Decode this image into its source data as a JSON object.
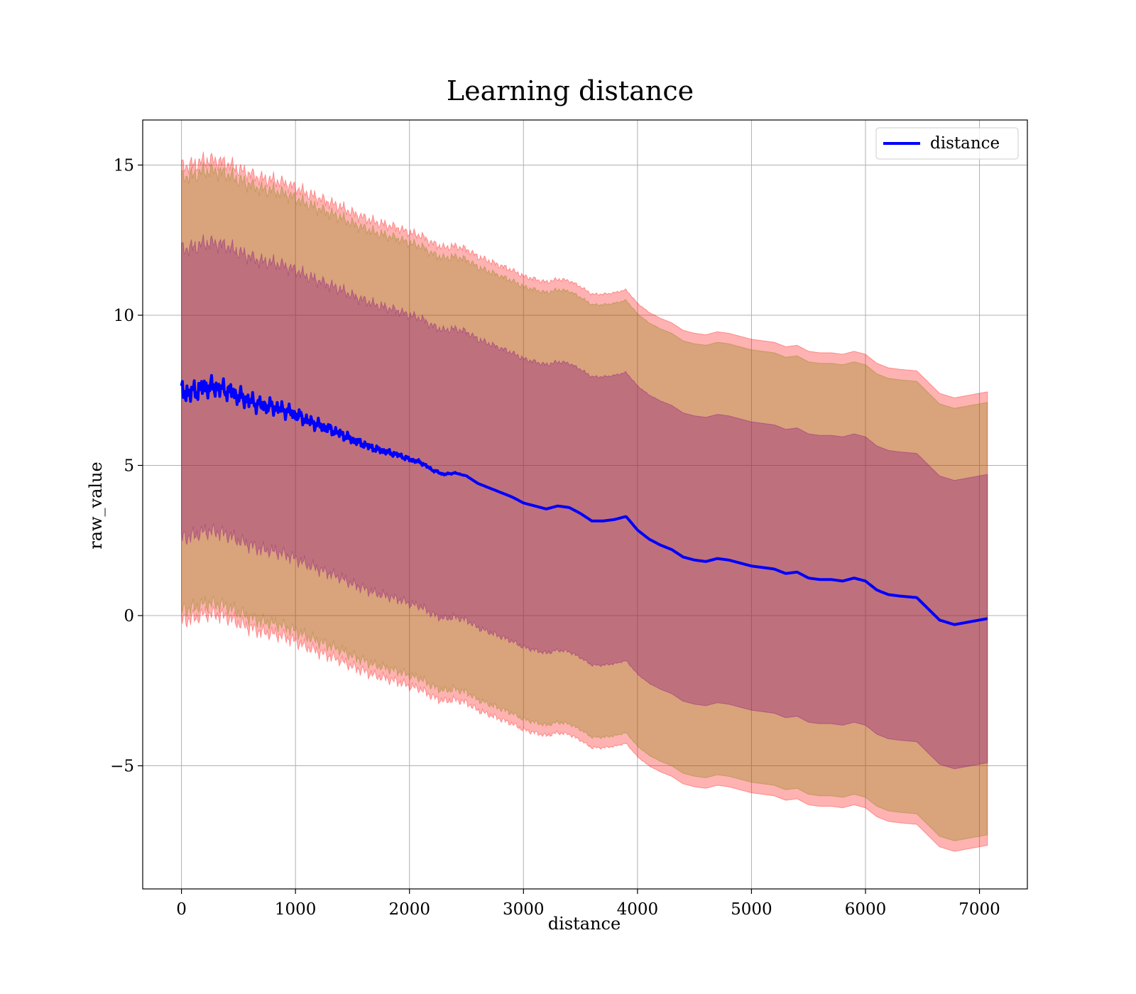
{
  "chart_data": {
    "type": "line",
    "title": "Learning distance",
    "xlabel": "distance",
    "ylabel": "raw_value",
    "xlim": [
      -340,
      7420
    ],
    "ylim": [
      -9.1,
      16.5
    ],
    "xticks": [
      0,
      1000,
      2000,
      3000,
      4000,
      5000,
      6000,
      7000
    ],
    "yticks": [
      -5,
      0,
      5,
      10,
      15
    ],
    "ytick_labels": [
      "−5",
      "0",
      "5",
      "10",
      "15"
    ],
    "grid": true,
    "legend": {
      "position": "top-right",
      "entries": [
        "distance"
      ]
    },
    "colors": {
      "line": "#0000ff",
      "band_outer": "#ff0000",
      "band_middle": "#808000",
      "band_inner": "#800080",
      "grid": "#b0b0b0"
    },
    "series": [
      {
        "name": "distance",
        "x": [
          0,
          100,
          200,
          300,
          400,
          500,
          600,
          700,
          800,
          900,
          1000,
          1100,
          1200,
          1300,
          1400,
          1500,
          1600,
          1700,
          1800,
          1900,
          2000,
          2100,
          2200,
          2300,
          2400,
          2500,
          2600,
          2700,
          2800,
          2900,
          3000,
          3100,
          3200,
          3300,
          3400,
          3500,
          3600,
          3700,
          3800,
          3900,
          4000,
          4100,
          4200,
          4300,
          4400,
          4500,
          4600,
          4700,
          4800,
          4900,
          5000,
          5100,
          5200,
          5300,
          5400,
          5500,
          5600,
          5700,
          5800,
          5900,
          6000,
          6100,
          6200,
          6300,
          6450,
          6650,
          6780,
          7070
        ],
        "y": [
          7.4,
          7.45,
          7.6,
          7.6,
          7.5,
          7.3,
          7.15,
          7.0,
          6.95,
          6.85,
          6.7,
          6.5,
          6.35,
          6.2,
          6.05,
          5.85,
          5.7,
          5.55,
          5.45,
          5.35,
          5.2,
          5.1,
          4.85,
          4.7,
          4.75,
          4.65,
          4.4,
          4.25,
          4.1,
          3.95,
          3.75,
          3.65,
          3.55,
          3.65,
          3.6,
          3.4,
          3.15,
          3.15,
          3.2,
          3.3,
          2.85,
          2.55,
          2.35,
          2.2,
          1.95,
          1.85,
          1.8,
          1.9,
          1.85,
          1.75,
          1.65,
          1.6,
          1.55,
          1.4,
          1.45,
          1.25,
          1.2,
          1.2,
          1.15,
          1.25,
          1.15,
          0.85,
          0.7,
          0.65,
          0.6,
          -0.15,
          -0.3,
          -0.1
        ]
      }
    ],
    "bands": [
      {
        "sigma": 3,
        "color": "#ff0000",
        "opacity": 0.3,
        "half_width_start": 7.55,
        "half_width_end": 7.55
      },
      {
        "sigma": 2.85,
        "color": "#808000",
        "opacity": 0.3,
        "half_width_start": 7.2,
        "half_width_end": 7.2
      },
      {
        "sigma": 1.9,
        "color": "#800080",
        "opacity": 0.3,
        "half_width_start": 4.8,
        "half_width_end": 4.8
      }
    ]
  }
}
